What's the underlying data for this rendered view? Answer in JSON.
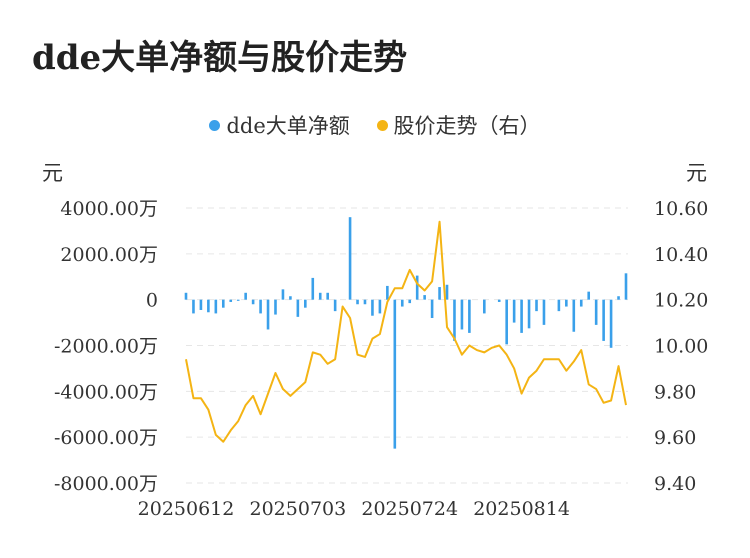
{
  "title": "dde大单净额与股价走势",
  "chart_data": {
    "type": "bar+line",
    "legend": [
      {
        "name": "dde大单净额",
        "color": "#3aa0ea"
      },
      {
        "name": "股价走势（右）",
        "color": "#f4b414"
      }
    ],
    "left_unit": "元",
    "right_unit": "元",
    "left_ticks": [
      "4000.00万",
      "2000.00万",
      "0",
      "-2000.00万",
      "-4000.00万",
      "-6000.00万",
      "-8000.00万"
    ],
    "right_ticks": [
      "10.60",
      "10.40",
      "10.20",
      "10.00",
      "9.80",
      "9.60",
      "9.40"
    ],
    "left_ylim": [
      -8000,
      4000
    ],
    "right_ylim": [
      9.4,
      10.6
    ],
    "x_ticks": [
      {
        "label": "20250612",
        "index": 0
      },
      {
        "label": "20250703",
        "index": 15
      },
      {
        "label": "20250724",
        "index": 30
      },
      {
        "label": "20250814",
        "index": 45
      }
    ],
    "dde_wan": [
      300,
      -600,
      -450,
      -550,
      -600,
      -350,
      -100,
      -50,
      300,
      -200,
      -600,
      -1300,
      -650,
      450,
      150,
      -750,
      -350,
      950,
      300,
      300,
      -500,
      0,
      3600,
      -200,
      -200,
      -700,
      -600,
      600,
      -6500,
      -300,
      -150,
      1050,
      200,
      -800,
      550,
      650,
      -1800,
      -1300,
      -1450,
      0,
      -600,
      0,
      -100,
      -1950,
      -1000,
      -1450,
      -1250,
      -500,
      -1100,
      0,
      -500,
      -300,
      -1400,
      -300,
      350,
      -1100,
      -1800,
      -2100,
      150,
      1150
    ],
    "price": [
      9.94,
      9.77,
      9.77,
      9.72,
      9.61,
      9.58,
      9.63,
      9.67,
      9.74,
      9.78,
      9.7,
      9.79,
      9.88,
      9.81,
      9.78,
      9.81,
      9.84,
      9.97,
      9.96,
      9.92,
      9.94,
      10.17,
      10.12,
      9.96,
      9.95,
      10.03,
      10.05,
      10.19,
      10.25,
      10.25,
      10.33,
      10.27,
      10.24,
      10.28,
      10.54,
      10.08,
      10.03,
      9.96,
      10.0,
      9.98,
      9.97,
      9.99,
      10.0,
      9.96,
      9.9,
      9.79,
      9.86,
      9.89,
      9.94,
      9.94,
      9.94,
      9.89,
      9.93,
      9.98,
      9.83,
      9.81,
      9.75,
      9.76,
      9.91,
      9.74
    ]
  }
}
